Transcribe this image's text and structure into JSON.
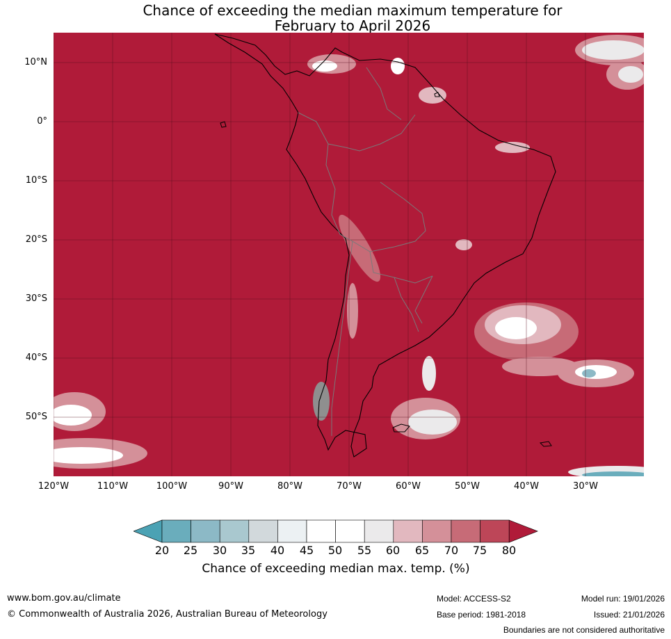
{
  "title": {
    "line1": "Chance of exceeding the median maximum temperature for",
    "line2": "February to April 2026"
  },
  "map": {
    "background_color": "#b01b39",
    "latitude_labels": [
      "10°N",
      "0°",
      "10°S",
      "20°S",
      "30°S",
      "40°S",
      "50°S"
    ],
    "longitude_labels": [
      "120°W",
      "110°W",
      "100°W",
      "90°W",
      "80°W",
      "70°W",
      "60°W",
      "50°W",
      "40°W",
      "30°W"
    ]
  },
  "colorbar": {
    "ticks": [
      "20",
      "25",
      "30",
      "35",
      "40",
      "45",
      "50",
      "55",
      "60",
      "65",
      "70",
      "75",
      "80"
    ],
    "colors": [
      "#4ba2b4",
      "#6aadbc",
      "#8cb9c6",
      "#a9c8cf",
      "#d2d9dc",
      "#ecf1f3",
      "#ffffff",
      "#ffffff",
      "#ebeaeb",
      "#e2b8bf",
      "#d49099",
      "#c76b77",
      "#bd4658",
      "#b01b39"
    ],
    "label": "Chance of exceeding median max. temp. (%)"
  },
  "footer": {
    "website": "www.bom.gov.au/climate",
    "copyright": "© Commonwealth of Australia 2026, Australian Bureau of Meteorology",
    "model": "Model: ACCESS-S2",
    "model_run": "Model run: 19/01/2026",
    "base_period": "Base period: 1981-2018",
    "issued": "Issued: 21/01/2026",
    "disclaimer": "Boundaries are not considered authoritative"
  }
}
